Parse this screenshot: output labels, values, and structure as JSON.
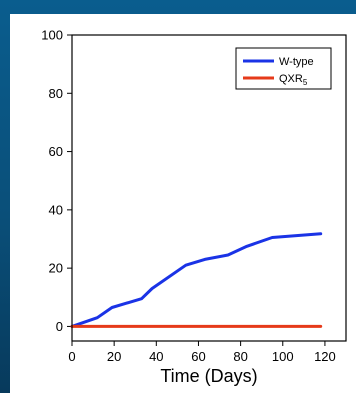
{
  "chart_data": {
    "type": "line",
    "title": "",
    "xlabel": "Time (Days)",
    "ylabel": "",
    "xlim": [
      0,
      130
    ],
    "ylim": [
      -5,
      100
    ],
    "xticks": [
      0,
      20,
      40,
      60,
      80,
      100,
      120
    ],
    "yticks": [
      0,
      20,
      40,
      60,
      80,
      100
    ],
    "grid": false,
    "legend_position": "top-right",
    "series": [
      {
        "name": "W-type",
        "name_main": "QXR",
        "color": "#1a33e6",
        "x": [
          0,
          12,
          19,
          33,
          38,
          54,
          63,
          74,
          83,
          95,
          118
        ],
        "y": [
          0,
          3,
          6.5,
          9.5,
          13,
          21,
          23,
          24.5,
          27.5,
          30.5,
          31.8
        ]
      },
      {
        "name": "QXR5",
        "name_main": "QXR",
        "name_sub": "5",
        "color": "#e63a1a",
        "x": [
          0,
          118
        ],
        "y": [
          0,
          0
        ]
      }
    ]
  }
}
